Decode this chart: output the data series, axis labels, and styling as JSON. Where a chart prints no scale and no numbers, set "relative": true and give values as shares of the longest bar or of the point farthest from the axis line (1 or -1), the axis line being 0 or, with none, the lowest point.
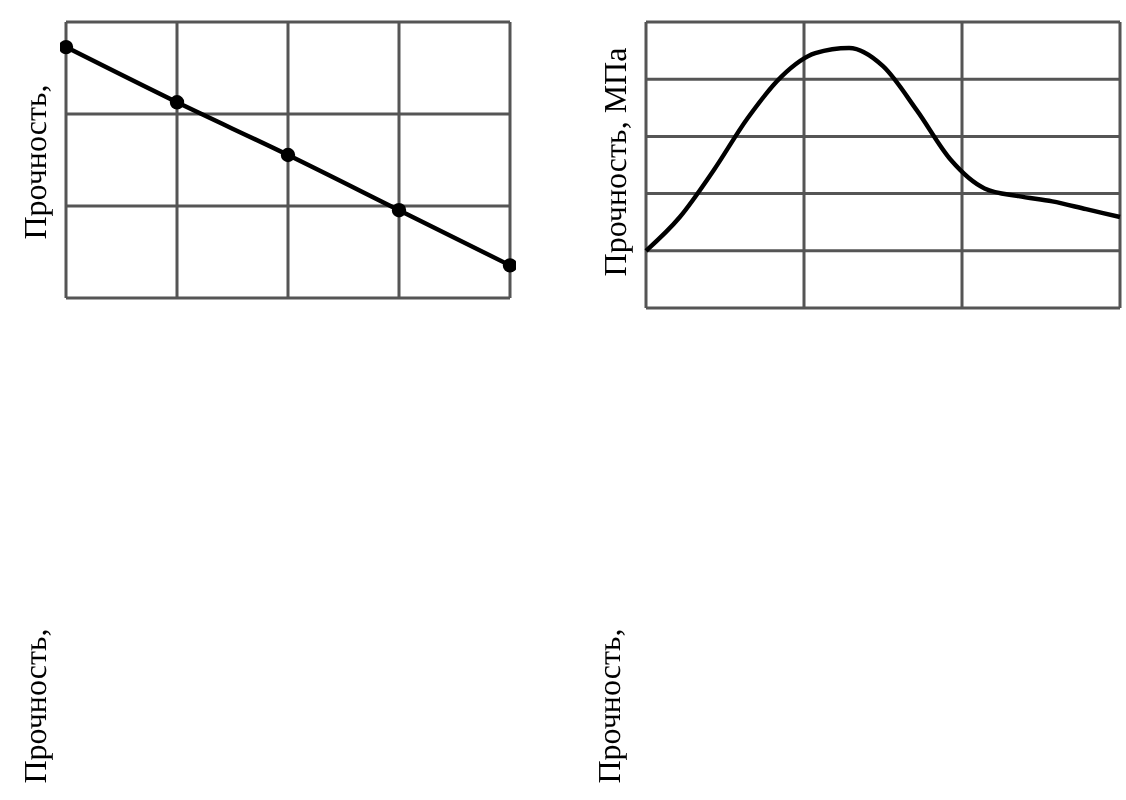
{
  "chart_data": [
    {
      "type": "line",
      "ylabel": "Прочность,",
      "relative": true,
      "categories": [
        null,
        null,
        null,
        null,
        null
      ],
      "grid": true,
      "marker": "circle",
      "line_style": "solid",
      "series": [
        {
          "color": "#000000",
          "values": [
            1,
            0.78,
            0.57,
            0.35,
            0.13
          ]
        }
      ]
    },
    {
      "type": "line",
      "ylabel": "Прочность, МПа",
      "relative": true,
      "categories": [
        null,
        null,
        null,
        null,
        null,
        null,
        null,
        null,
        null,
        null,
        null,
        null,
        null,
        null,
        null
      ],
      "grid": true,
      "line_style": "solid",
      "series": [
        {
          "color": "#000000",
          "values": [
            0.22,
            0.35,
            0.53,
            0.73,
            0.89,
            0.98,
            1,
            0.93,
            0.76,
            0.57,
            0.46,
            0.43,
            0.41,
            0.38,
            0.35
          ]
        }
      ]
    },
    {
      "type": "other",
      "ylabel": "Прочность,"
    },
    {
      "type": "other",
      "ylabel": "Прочность,"
    }
  ]
}
